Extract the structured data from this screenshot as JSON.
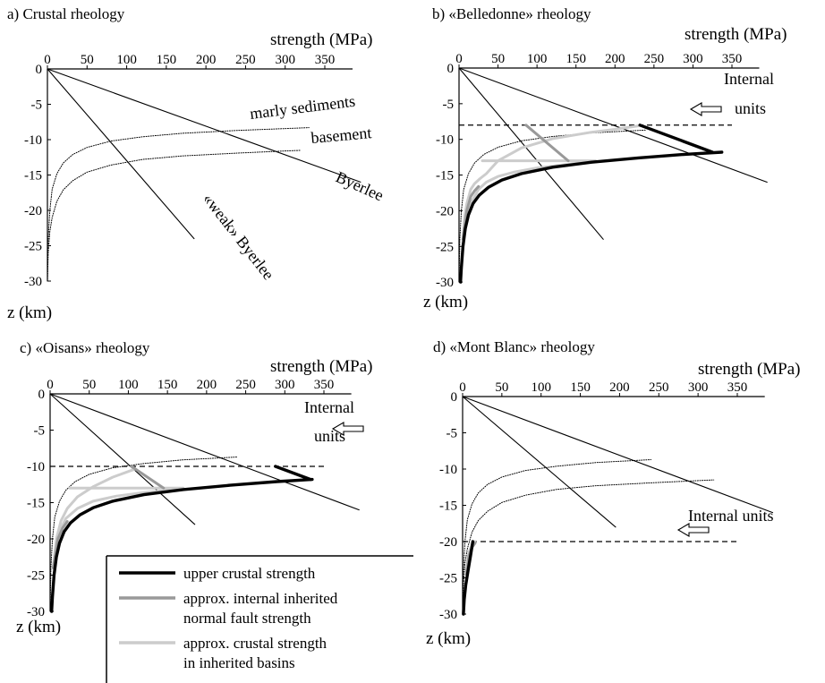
{
  "figure": {
    "legend": {
      "items": [
        {
          "label_lines": [
            "upper crustal strength"
          ],
          "color": "#000000"
        },
        {
          "label_lines": [
            "approx. internal inherited",
            "normal fault strength"
          ],
          "color": "#999999"
        },
        {
          "label_lines": [
            "approx. crustal strength",
            "in inherited basins"
          ],
          "color": "#cccccc"
        }
      ]
    }
  },
  "chart_data": [
    {
      "type": "line",
      "panel": "a",
      "title": "a) Crustal rheology",
      "xlabel": "strength (MPa)",
      "ylabel": "z (km)",
      "xticks": [
        0,
        50,
        100,
        150,
        200,
        250,
        300,
        350
      ],
      "yticks": [
        0,
        -5,
        -10,
        -15,
        -20,
        -25,
        -30
      ],
      "xlim": [
        0,
        350
      ],
      "ylim": [
        -30,
        0
      ],
      "annotations": [
        "marly sediments",
        "basement",
        "Byerlee",
        "«weak» Byerlee"
      ],
      "series": [
        {
          "style": "thin",
          "x": [
            0,
            395
          ],
          "y": [
            0,
            -16
          ]
        },
        {
          "style": "thin",
          "x": [
            0,
            185
          ],
          "y": [
            0,
            -24
          ]
        },
        {
          "style": "dotted",
          "x": [
            0,
            1,
            3,
            6,
            12,
            20,
            32,
            50,
            80,
            120,
            170,
            240,
            330
          ],
          "y": [
            -30,
            -24,
            -20,
            -17,
            -14.8,
            -13.3,
            -12.1,
            -11.1,
            -10.2,
            -9.6,
            -9.1,
            -8.7,
            -8.3
          ]
        },
        {
          "style": "dotted",
          "x": [
            0,
            1,
            3,
            6,
            12,
            20,
            32,
            50,
            80,
            120,
            170,
            240,
            320
          ],
          "y": [
            -30,
            -26,
            -23,
            -21,
            -18.7,
            -17.1,
            -15.8,
            -14.6,
            -13.6,
            -12.8,
            -12.3,
            -11.9,
            -11.5
          ]
        }
      ]
    },
    {
      "type": "line",
      "panel": "b",
      "title": "b) «Belledonne» rheology",
      "xlabel": "strength (MPa)",
      "ylabel": "z (km)",
      "xticks": [
        0,
        50,
        100,
        150,
        200,
        250,
        300,
        350
      ],
      "yticks": [
        0,
        -5,
        -10,
        -15,
        -20,
        -25,
        -30
      ],
      "xlim": [
        0,
        350
      ],
      "ylim": [
        -30,
        0
      ],
      "annotations": [
        "Internal",
        "units"
      ],
      "reference_depth": -8,
      "series": [
        {
          "style": "thin",
          "x": [
            0,
            395
          ],
          "y": [
            0,
            -16
          ]
        },
        {
          "style": "thin",
          "x": [
            0,
            185
          ],
          "y": [
            0,
            -24
          ]
        },
        {
          "style": "dotted",
          "x": [
            0,
            1,
            3,
            6,
            12,
            20,
            32,
            50,
            80,
            120,
            170,
            240
          ],
          "y": [
            -30,
            -24,
            -20,
            -17,
            -14.8,
            -13.3,
            -12.1,
            -11.1,
            -10.2,
            -9.6,
            -9.1,
            -8.7
          ]
        },
        {
          "style": "light",
          "x": [
            5,
            7,
            10,
            15,
            20,
            27,
            35,
            50,
            80,
            120,
            170,
            200,
            230
          ],
          "y": [
            -24,
            -21,
            -19,
            -17,
            -16.2,
            -15.5,
            -14.8,
            -13,
            -11.2,
            -9.9,
            -9.0,
            -8.6,
            -8.1
          ]
        },
        {
          "style": "light",
          "x": [
            5,
            15,
            25,
            35,
            50,
            70,
            100,
            140,
            175
          ],
          "y": [
            -24,
            -19,
            -17,
            -16,
            -15.2,
            -14.6,
            -14.0,
            -13.5,
            -13.0
          ]
        },
        {
          "style": "light",
          "x": [
            30,
            175
          ],
          "y": [
            -13,
            -13
          ]
        },
        {
          "style": "gray",
          "x": [
            5,
            10,
            15,
            20,
            25
          ],
          "y": [
            -24,
            -20,
            -18,
            -17.2,
            -16.6
          ]
        },
        {
          "style": "gray",
          "x": [
            86,
            140
          ],
          "y": [
            -8,
            -13
          ]
        },
        {
          "style": "thick",
          "x": [
            232,
            325
          ],
          "y": [
            -8,
            -11.8
          ]
        },
        {
          "style": "thick",
          "x": [
            2,
            3,
            5,
            8,
            12,
            18,
            26,
            38,
            55,
            80,
            120,
            170,
            230,
            290,
            337
          ],
          "y": [
            -30,
            -28,
            -25,
            -22.5,
            -20.6,
            -19,
            -17.8,
            -16.7,
            -15.7,
            -14.8,
            -13.9,
            -13.2,
            -12.6,
            -12.1,
            -11.8
          ]
        }
      ]
    },
    {
      "type": "line",
      "panel": "c",
      "title": "c) «Oisans» rheology",
      "xlabel": "strength (MPa)",
      "ylabel": "z (km)",
      "xticks": [
        0,
        50,
        100,
        150,
        200,
        250,
        300,
        350
      ],
      "yticks": [
        0,
        -5,
        -10,
        -15,
        -20,
        -25,
        -30
      ],
      "xlim": [
        0,
        350
      ],
      "ylim": [
        -30,
        0
      ],
      "annotations": [
        "Internal",
        "units"
      ],
      "reference_depth": -10,
      "series": [
        {
          "style": "thin",
          "x": [
            0,
            395
          ],
          "y": [
            0,
            -16
          ]
        },
        {
          "style": "thin",
          "x": [
            0,
            185
          ],
          "y": [
            0,
            -18
          ]
        },
        {
          "style": "dotted",
          "x": [
            0,
            1,
            3,
            6,
            12,
            20,
            32,
            50,
            80,
            120,
            170,
            240
          ],
          "y": [
            -30,
            -24,
            -20,
            -17,
            -14.8,
            -13.3,
            -12.1,
            -11.1,
            -10.2,
            -9.6,
            -9.1,
            -8.7
          ]
        },
        {
          "style": "light",
          "x": [
            4,
            8,
            14,
            22,
            35,
            55,
            80,
            108
          ],
          "y": [
            -24,
            -20,
            -17.5,
            -15.8,
            -14.2,
            -12.8,
            -11.5,
            -10.4
          ]
        },
        {
          "style": "light",
          "x": [
            4,
            10,
            20,
            35,
            55,
            85,
            120,
            150,
            170
          ],
          "y": [
            -24,
            -19.5,
            -17.2,
            -15.8,
            -14.8,
            -14.1,
            -13.6,
            -13.3,
            -13
          ]
        },
        {
          "style": "light",
          "x": [
            25,
            170
          ],
          "y": [
            -13,
            -13
          ]
        },
        {
          "style": "gray",
          "x": [
            4,
            10,
            16,
            22
          ],
          "y": [
            -24,
            -20,
            -18.5,
            -17.6
          ]
        },
        {
          "style": "gray",
          "x": [
            104,
            145
          ],
          "y": [
            -10,
            -13
          ]
        },
        {
          "style": "thick",
          "x": [
            288,
            333
          ],
          "y": [
            -10,
            -11.8
          ]
        },
        {
          "style": "thick",
          "x": [
            2,
            3,
            5,
            8,
            12,
            18,
            26,
            38,
            55,
            80,
            120,
            170,
            230,
            290,
            335
          ],
          "y": [
            -30,
            -28,
            -25,
            -22.5,
            -20.6,
            -19,
            -17.8,
            -16.7,
            -15.7,
            -14.8,
            -13.9,
            -13.2,
            -12.6,
            -12.1,
            -11.8
          ]
        }
      ]
    },
    {
      "type": "line",
      "panel": "d",
      "title": "d) «Mont Blanc» rheology",
      "xlabel": "strength (MPa)",
      "ylabel": "z (km)",
      "xticks": [
        0,
        50,
        100,
        150,
        200,
        250,
        300,
        350
      ],
      "yticks": [
        0,
        -5,
        -10,
        -15,
        -20,
        -25,
        -30
      ],
      "xlim": [
        0,
        350
      ],
      "ylim": [
        -30,
        0
      ],
      "annotations": [
        "Internal units"
      ],
      "reference_depth": -20,
      "series": [
        {
          "style": "thin",
          "x": [
            0,
            395
          ],
          "y": [
            0,
            -16
          ]
        },
        {
          "style": "thin",
          "x": [
            0,
            195
          ],
          "y": [
            0,
            -18
          ]
        },
        {
          "style": "dotted",
          "x": [
            0,
            1,
            3,
            6,
            12,
            20,
            32,
            50,
            80,
            120,
            170,
            240
          ],
          "y": [
            -30,
            -24,
            -20,
            -17,
            -14.8,
            -13.3,
            -12.1,
            -11.1,
            -10.2,
            -9.6,
            -9.1,
            -8.7
          ]
        },
        {
          "style": "dotted",
          "x": [
            0,
            1,
            3,
            6,
            12,
            20,
            32,
            50,
            80,
            120,
            170,
            240,
            320
          ],
          "y": [
            -30,
            -26,
            -23,
            -21,
            -18.7,
            -17.1,
            -15.8,
            -14.6,
            -13.6,
            -12.8,
            -12.3,
            -11.9,
            -11.5
          ]
        },
        {
          "style": "light",
          "x": [
            5,
            8,
            12,
            16
          ],
          "y": [
            -24,
            -21.5,
            -20.5,
            -20
          ]
        },
        {
          "style": "gray",
          "x": [
            5,
            8,
            12,
            16
          ],
          "y": [
            -24.5,
            -22,
            -20.8,
            -20.2
          ]
        },
        {
          "style": "thick",
          "x": [
            1,
            2,
            4,
            7,
            10,
            13
          ],
          "y": [
            -30,
            -28,
            -26,
            -24,
            -22,
            -20
          ]
        }
      ]
    }
  ]
}
